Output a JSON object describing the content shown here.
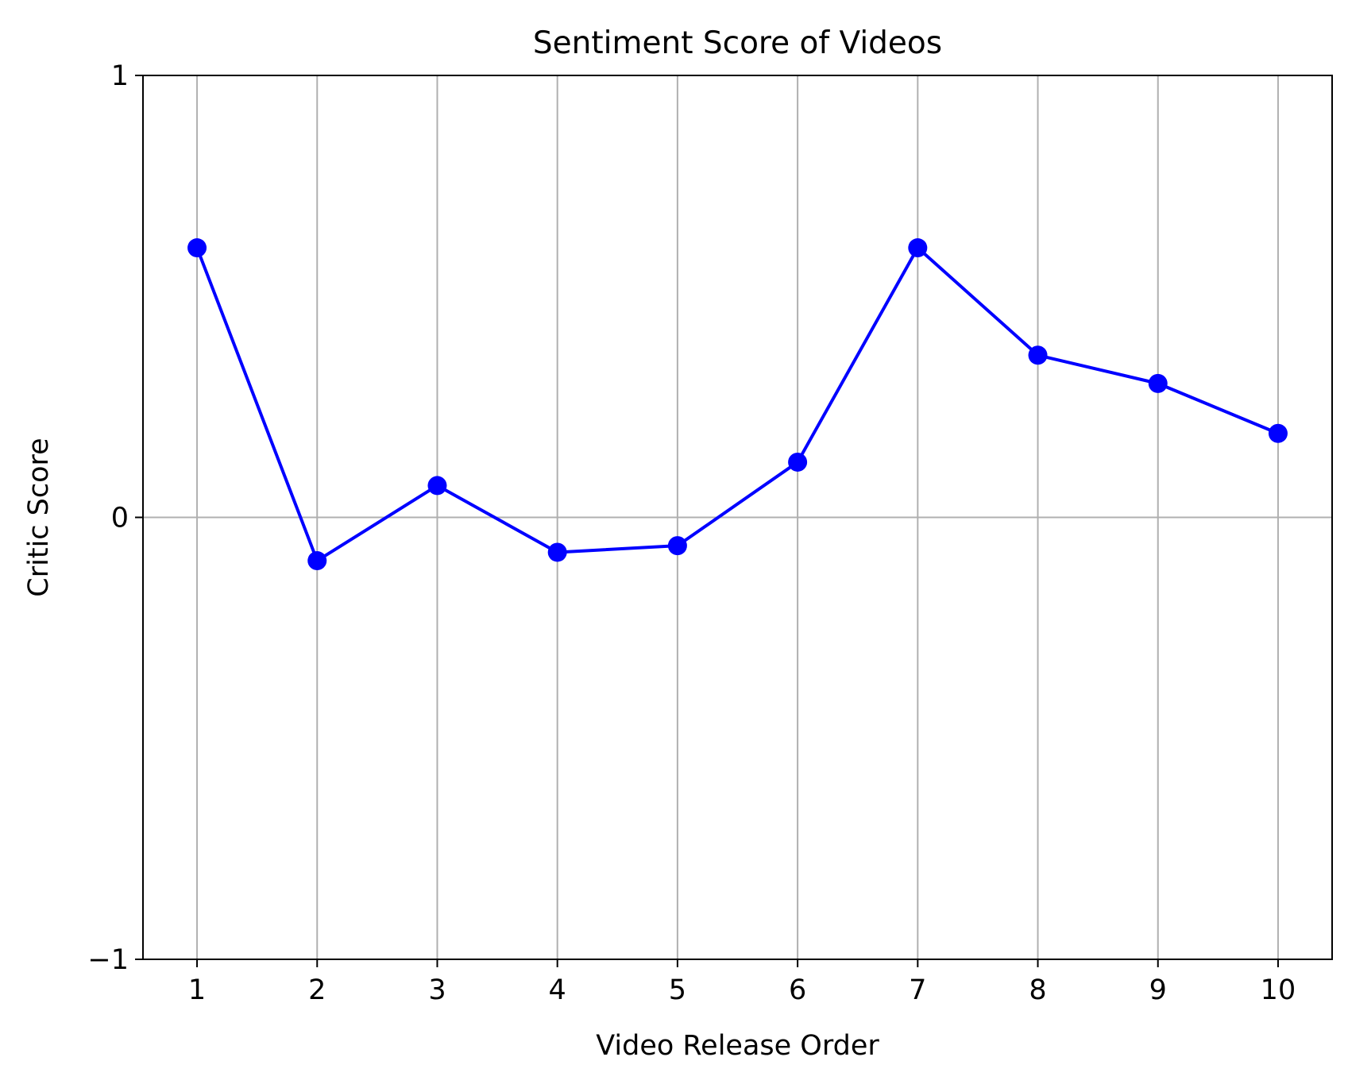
{
  "chart_data": {
    "type": "line",
    "title": "Sentiment Score of Videos",
    "xlabel": "Video Release Order",
    "ylabel": "Critic Score",
    "x": [
      1,
      2,
      3,
      4,
      5,
      6,
      7,
      8,
      9,
      10
    ],
    "x_tick_labels": [
      "1",
      "2",
      "3",
      "4",
      "5",
      "6",
      "7",
      "8",
      "9",
      "10"
    ],
    "y_ticks": [
      -1,
      0,
      1
    ],
    "y_tick_labels": [
      "−1",
      "0",
      "1"
    ],
    "xlim": [
      0.55,
      10.45
    ],
    "ylim": [
      -1,
      1
    ],
    "grid": true,
    "series": [
      {
        "values": [
          0.61,
          -0.098,
          0.072,
          -0.079,
          -0.064,
          0.125,
          0.61,
          0.367,
          0.303,
          0.19
        ],
        "color": "#0000ff",
        "marker": "circle"
      }
    ]
  }
}
